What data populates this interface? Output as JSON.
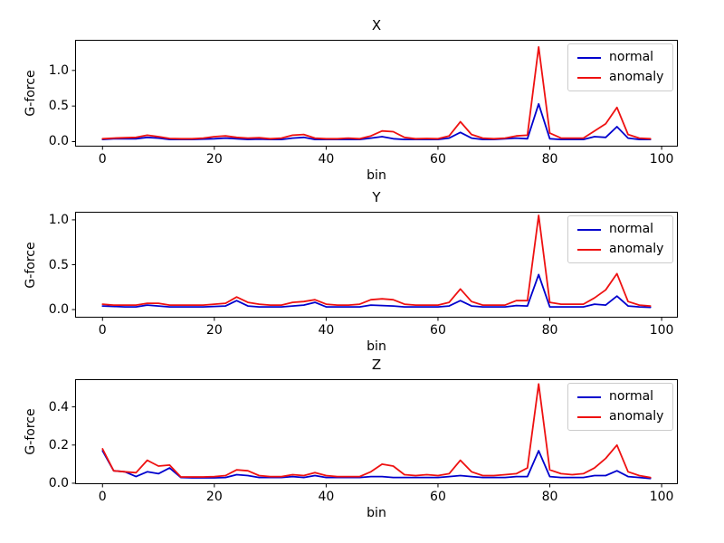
{
  "figure": {
    "background": "#ffffff",
    "axis_color": "#000000"
  },
  "chart_data": [
    {
      "type": "line",
      "title": "X",
      "xlabel": "bin",
      "ylabel": "G-force",
      "xlim": [
        -4.9,
        102.9
      ],
      "ylim": [
        -0.07,
        1.43
      ],
      "xticks": [
        0,
        20,
        40,
        60,
        80,
        100
      ],
      "xtick_labels": [
        "0",
        "20",
        "40",
        "60",
        "80",
        "100"
      ],
      "yticks": [
        0.0,
        0.5,
        1.0
      ],
      "ytick_labels": [
        "0.0",
        "0.5",
        "1.0"
      ],
      "legend": {
        "position": "upper right",
        "entries": [
          "normal",
          "anomaly"
        ]
      },
      "x": [
        0,
        2,
        4,
        6,
        8,
        10,
        12,
        14,
        16,
        18,
        20,
        22,
        24,
        26,
        28,
        30,
        32,
        34,
        36,
        38,
        40,
        42,
        44,
        46,
        48,
        50,
        52,
        54,
        56,
        58,
        60,
        62,
        64,
        66,
        68,
        70,
        72,
        74,
        76,
        78,
        80,
        82,
        84,
        86,
        88,
        90,
        92,
        94,
        96,
        98
      ],
      "series": [
        {
          "name": "normal",
          "color": "#0000cd",
          "values": [
            0.03,
            0.04,
            0.04,
            0.04,
            0.06,
            0.05,
            0.03,
            0.03,
            0.03,
            0.035,
            0.04,
            0.05,
            0.04,
            0.03,
            0.035,
            0.03,
            0.03,
            0.05,
            0.06,
            0.03,
            0.03,
            0.03,
            0.03,
            0.03,
            0.05,
            0.07,
            0.04,
            0.03,
            0.03,
            0.03,
            0.03,
            0.05,
            0.13,
            0.05,
            0.03,
            0.03,
            0.04,
            0.05,
            0.04,
            0.53,
            0.04,
            0.03,
            0.03,
            0.03,
            0.07,
            0.06,
            0.21,
            0.05,
            0.03,
            0.03
          ]
        },
        {
          "name": "anomaly",
          "color": "#ee1111",
          "values": [
            0.04,
            0.05,
            0.055,
            0.06,
            0.09,
            0.07,
            0.045,
            0.04,
            0.04,
            0.05,
            0.07,
            0.08,
            0.06,
            0.05,
            0.055,
            0.04,
            0.05,
            0.09,
            0.1,
            0.05,
            0.04,
            0.04,
            0.05,
            0.04,
            0.08,
            0.15,
            0.14,
            0.06,
            0.04,
            0.045,
            0.04,
            0.08,
            0.28,
            0.1,
            0.05,
            0.04,
            0.05,
            0.08,
            0.09,
            1.33,
            0.12,
            0.05,
            0.05,
            0.05,
            0.15,
            0.25,
            0.48,
            0.1,
            0.05,
            0.04
          ]
        }
      ]
    },
    {
      "type": "line",
      "title": "Y",
      "xlabel": "bin",
      "ylabel": "G-force",
      "xlim": [
        -4.9,
        102.9
      ],
      "ylim": [
        -0.09,
        1.09
      ],
      "xticks": [
        0,
        20,
        40,
        60,
        80,
        100
      ],
      "xtick_labels": [
        "0",
        "20",
        "40",
        "60",
        "80",
        "100"
      ],
      "yticks": [
        0.0,
        0.5,
        1.0
      ],
      "ytick_labels": [
        "0.0",
        "0.5",
        "1.0"
      ],
      "legend": {
        "position": "upper right",
        "entries": [
          "normal",
          "anomaly"
        ]
      },
      "x": [
        0,
        2,
        4,
        6,
        8,
        10,
        12,
        14,
        16,
        18,
        20,
        22,
        24,
        26,
        28,
        30,
        32,
        34,
        36,
        38,
        40,
        42,
        44,
        46,
        48,
        50,
        52,
        54,
        56,
        58,
        60,
        62,
        64,
        66,
        68,
        70,
        72,
        74,
        76,
        78,
        80,
        82,
        84,
        86,
        88,
        90,
        92,
        94,
        96,
        98
      ],
      "series": [
        {
          "name": "normal",
          "color": "#0000cd",
          "values": [
            0.04,
            0.035,
            0.03,
            0.03,
            0.05,
            0.04,
            0.03,
            0.03,
            0.03,
            0.03,
            0.035,
            0.04,
            0.1,
            0.04,
            0.03,
            0.03,
            0.03,
            0.04,
            0.05,
            0.08,
            0.03,
            0.03,
            0.03,
            0.03,
            0.05,
            0.045,
            0.04,
            0.03,
            0.03,
            0.03,
            0.03,
            0.04,
            0.1,
            0.04,
            0.03,
            0.03,
            0.03,
            0.045,
            0.04,
            0.39,
            0.03,
            0.03,
            0.03,
            0.03,
            0.06,
            0.05,
            0.15,
            0.04,
            0.03,
            0.025
          ]
        },
        {
          "name": "anomaly",
          "color": "#ee1111",
          "values": [
            0.06,
            0.05,
            0.05,
            0.05,
            0.07,
            0.07,
            0.05,
            0.05,
            0.05,
            0.05,
            0.06,
            0.07,
            0.14,
            0.08,
            0.06,
            0.05,
            0.05,
            0.08,
            0.09,
            0.11,
            0.06,
            0.05,
            0.05,
            0.06,
            0.11,
            0.12,
            0.11,
            0.06,
            0.05,
            0.05,
            0.05,
            0.08,
            0.23,
            0.09,
            0.05,
            0.05,
            0.05,
            0.1,
            0.1,
            1.05,
            0.08,
            0.06,
            0.06,
            0.06,
            0.13,
            0.22,
            0.4,
            0.09,
            0.05,
            0.04
          ]
        }
      ]
    },
    {
      "type": "line",
      "title": "Z",
      "xlabel": "bin",
      "ylabel": "G-force",
      "xlim": [
        -4.9,
        102.9
      ],
      "ylim": [
        -0.005,
        0.545
      ],
      "xticks": [
        0,
        20,
        40,
        60,
        80,
        100
      ],
      "xtick_labels": [
        "0",
        "20",
        "40",
        "60",
        "80",
        "100"
      ],
      "yticks": [
        0.0,
        0.2,
        0.4
      ],
      "ytick_labels": [
        "0.0",
        "0.2",
        "0.4"
      ],
      "legend": {
        "position": "upper right",
        "entries": [
          "normal",
          "anomaly"
        ]
      },
      "x": [
        0,
        2,
        4,
        6,
        8,
        10,
        12,
        14,
        16,
        18,
        20,
        22,
        24,
        26,
        28,
        30,
        32,
        34,
        36,
        38,
        40,
        42,
        44,
        46,
        48,
        50,
        52,
        54,
        56,
        58,
        60,
        62,
        64,
        66,
        68,
        70,
        72,
        74,
        76,
        78,
        80,
        82,
        84,
        86,
        88,
        90,
        92,
        94,
        96,
        98
      ],
      "series": [
        {
          "name": "normal",
          "color": "#0000cd",
          "values": [
            0.17,
            0.065,
            0.06,
            0.035,
            0.06,
            0.05,
            0.08,
            0.03,
            0.028,
            0.028,
            0.028,
            0.03,
            0.045,
            0.04,
            0.03,
            0.03,
            0.03,
            0.035,
            0.03,
            0.04,
            0.03,
            0.03,
            0.03,
            0.03,
            0.035,
            0.035,
            0.03,
            0.03,
            0.03,
            0.03,
            0.03,
            0.035,
            0.04,
            0.035,
            0.03,
            0.03,
            0.03,
            0.035,
            0.035,
            0.17,
            0.035,
            0.03,
            0.03,
            0.03,
            0.04,
            0.04,
            0.065,
            0.035,
            0.03,
            0.025
          ]
        },
        {
          "name": "anomaly",
          "color": "#ee1111",
          "values": [
            0.18,
            0.065,
            0.06,
            0.055,
            0.12,
            0.09,
            0.095,
            0.033,
            0.033,
            0.033,
            0.035,
            0.04,
            0.07,
            0.065,
            0.04,
            0.035,
            0.035,
            0.045,
            0.04,
            0.055,
            0.04,
            0.035,
            0.035,
            0.035,
            0.06,
            0.1,
            0.09,
            0.045,
            0.04,
            0.045,
            0.04,
            0.05,
            0.12,
            0.06,
            0.04,
            0.04,
            0.045,
            0.05,
            0.08,
            0.52,
            0.07,
            0.05,
            0.045,
            0.05,
            0.08,
            0.13,
            0.2,
            0.06,
            0.04,
            0.03
          ]
        }
      ]
    }
  ]
}
